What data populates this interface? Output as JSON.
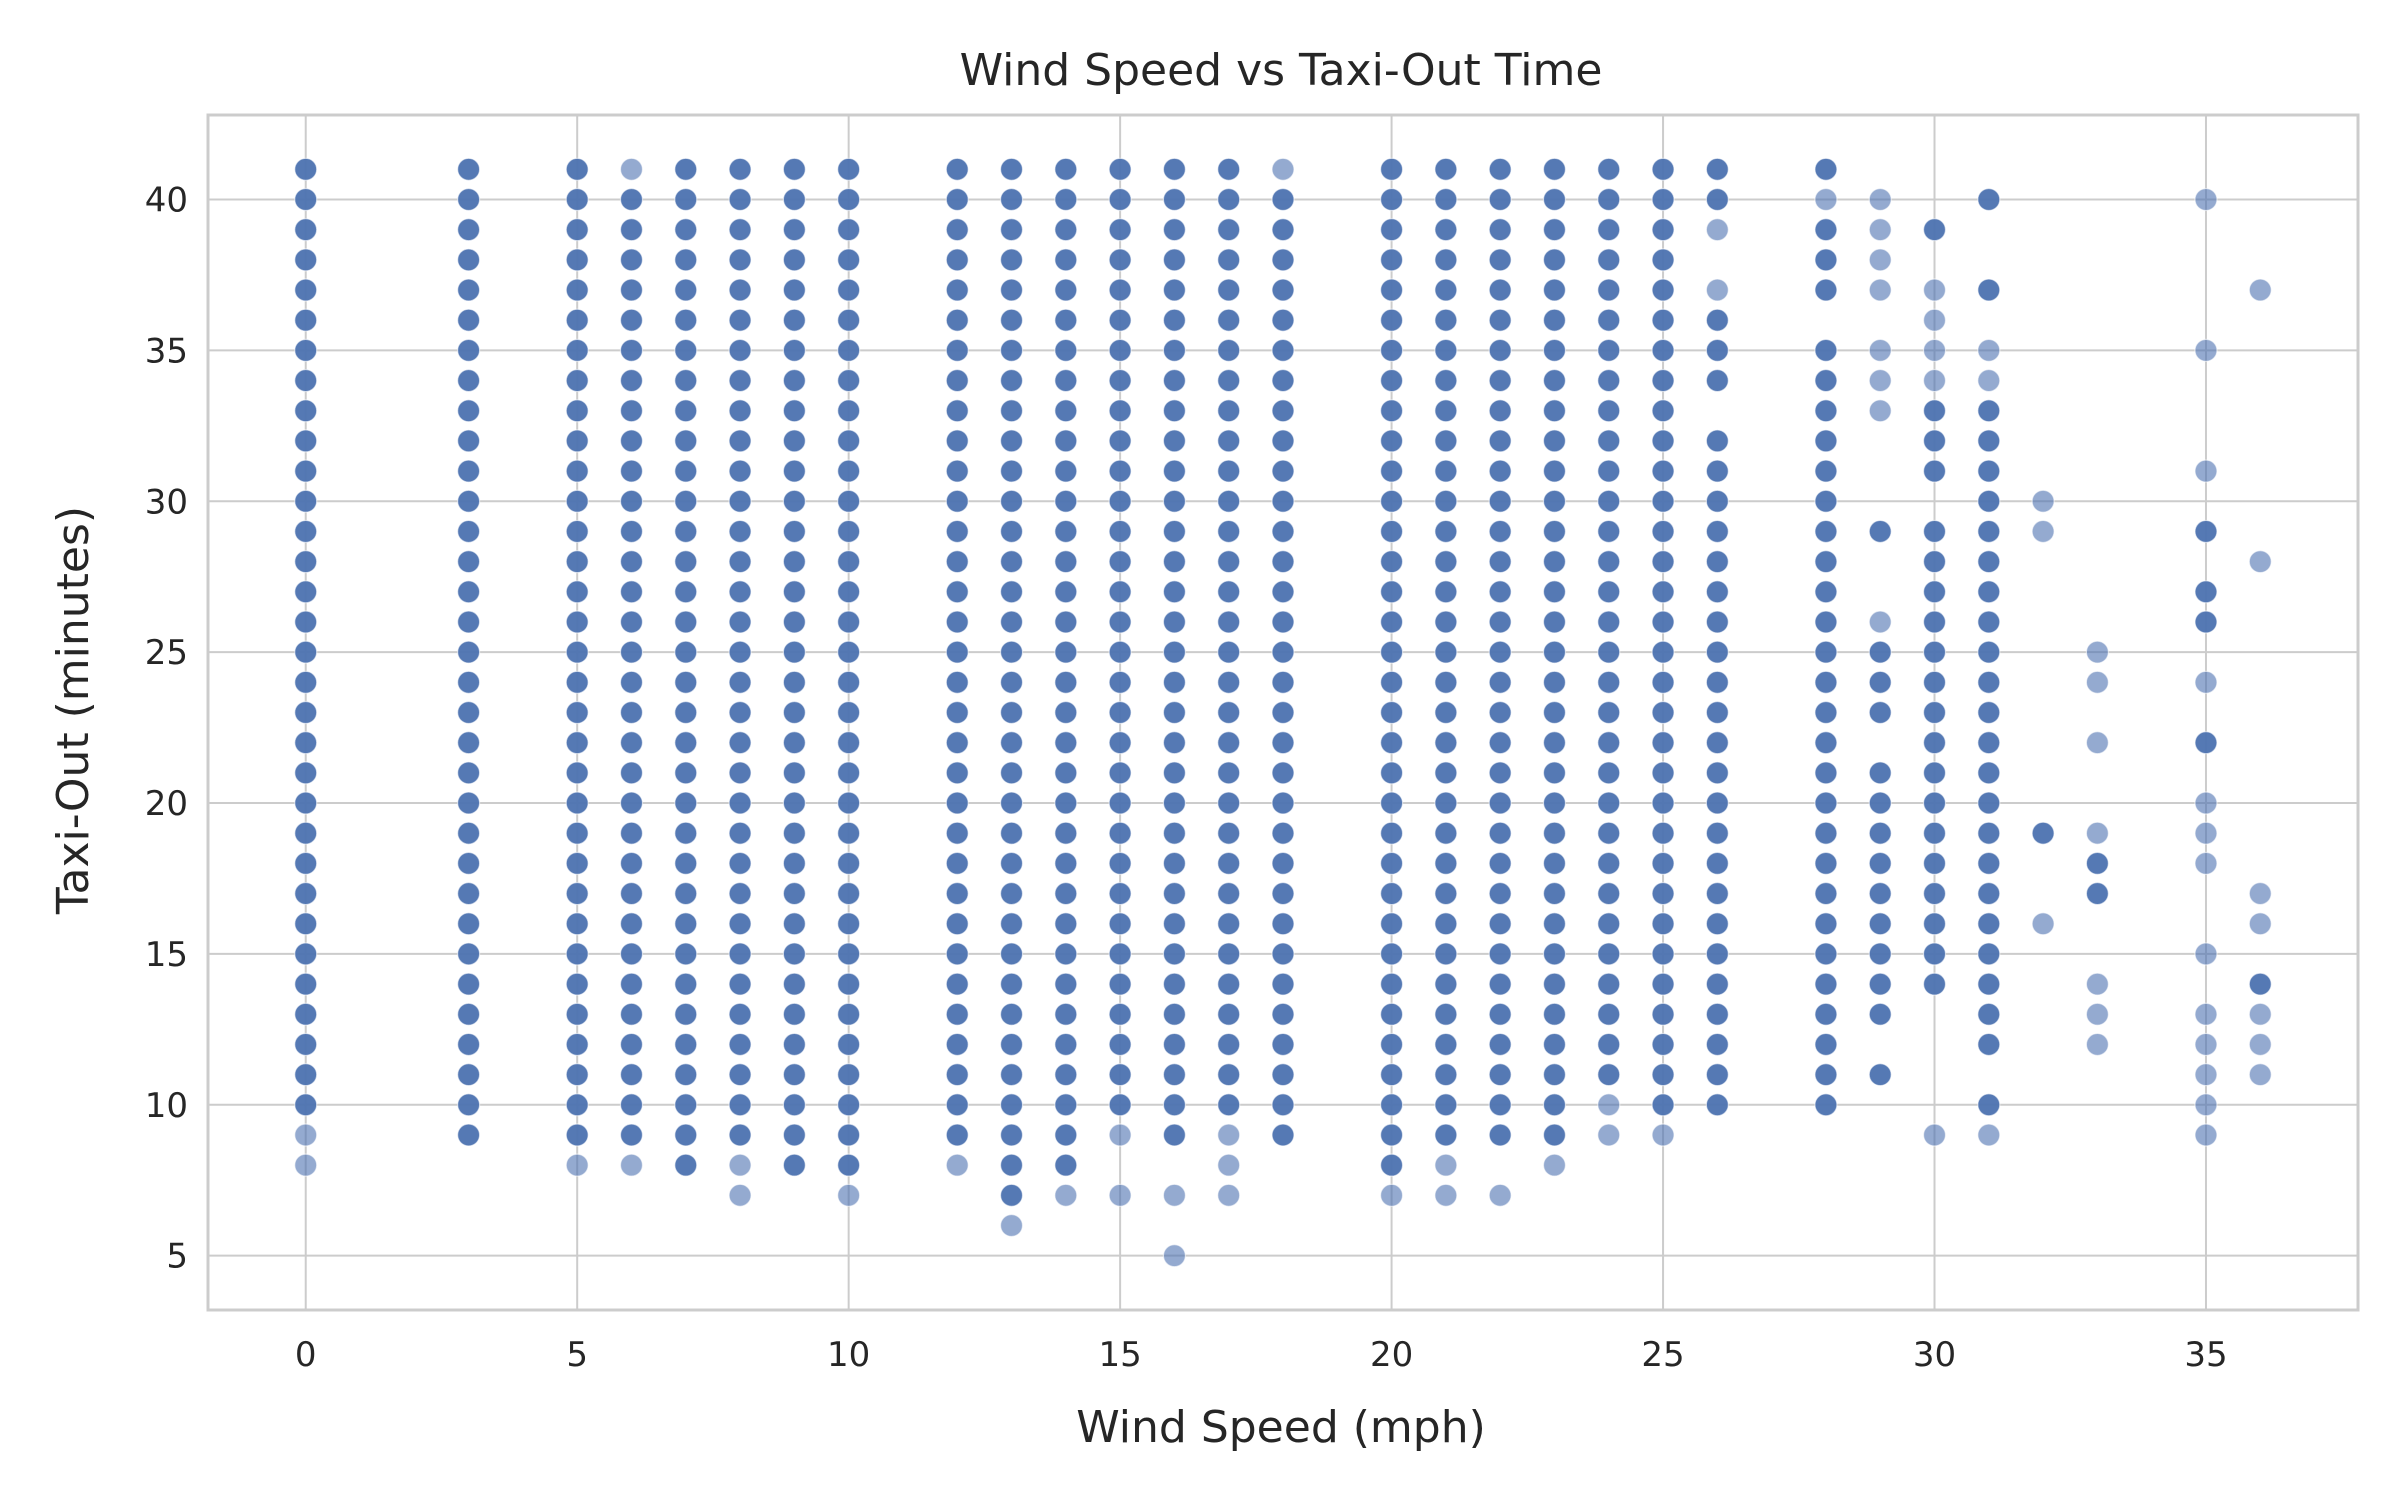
{
  "chart_data": {
    "type": "scatter",
    "title": "Wind Speed vs Taxi-Out Time",
    "xlabel": "Wind Speed (mph)",
    "ylabel": "Taxi-Out (minutes)",
    "xlim": [
      -1.8,
      37.8
    ],
    "ylim": [
      3.2,
      42.8
    ],
    "xticks": [
      0,
      5,
      10,
      15,
      20,
      25,
      30,
      35
    ],
    "yticks": [
      5,
      10,
      15,
      20,
      25,
      30,
      35,
      40
    ],
    "grid": true,
    "marker_color": "#4c72b0",
    "background": "#ffffff",
    "grid_color": "#cccccc",
    "columns": [
      {
        "x": 0,
        "dense": [
          10,
          41
        ],
        "faint": [
          8,
          9,
          39,
          40
        ],
        "missing": []
      },
      {
        "x": 3,
        "dense": [
          9,
          41
        ],
        "faint": [],
        "missing": []
      },
      {
        "x": 5,
        "dense": [
          9,
          41
        ],
        "faint": [
          8
        ],
        "missing": []
      },
      {
        "x": 6,
        "dense": [
          9,
          40
        ],
        "faint": [
          8,
          41
        ],
        "missing": []
      },
      {
        "x": 7,
        "dense": [
          8,
          41
        ],
        "faint": [],
        "missing": []
      },
      {
        "x": 8,
        "dense": [
          9,
          41
        ],
        "faint": [
          7,
          8
        ],
        "missing": []
      },
      {
        "x": 9,
        "dense": [
          8,
          41
        ],
        "faint": [],
        "missing": []
      },
      {
        "x": 10,
        "dense": [
          8,
          41
        ],
        "faint": [
          7
        ],
        "missing": []
      },
      {
        "x": 12,
        "dense": [
          9,
          41
        ],
        "faint": [
          8
        ],
        "missing": []
      },
      {
        "x": 13,
        "dense": [
          7,
          41
        ],
        "faint": [
          6
        ],
        "missing": []
      },
      {
        "x": 14,
        "dense": [
          8,
          41
        ],
        "faint": [
          7
        ],
        "missing": []
      },
      {
        "x": 15,
        "dense": [
          10,
          41
        ],
        "faint": [
          7,
          9
        ],
        "missing": []
      },
      {
        "x": 16,
        "dense": [
          9,
          41
        ],
        "faint": [
          5,
          7
        ],
        "missing": []
      },
      {
        "x": 17,
        "dense": [
          10,
          41
        ],
        "faint": [
          7,
          8,
          9
        ],
        "missing": []
      },
      {
        "x": 18,
        "dense": [
          9,
          40
        ],
        "faint": [
          41
        ],
        "missing": []
      },
      {
        "x": 20,
        "dense": [
          8,
          41
        ],
        "faint": [
          7
        ],
        "missing": []
      },
      {
        "x": 21,
        "dense": [
          9,
          41
        ],
        "faint": [
          7,
          8,
          37
        ],
        "missing": []
      },
      {
        "x": 22,
        "dense": [
          9,
          41
        ],
        "faint": [
          7
        ],
        "missing": []
      },
      {
        "x": 23,
        "dense": [
          9,
          41
        ],
        "faint": [
          8
        ],
        "missing": []
      },
      {
        "x": 24,
        "dense": [
          11,
          41
        ],
        "faint": [
          9,
          10
        ],
        "missing": []
      },
      {
        "x": 25,
        "dense": [
          10,
          41
        ],
        "faint": [
          9,
          37
        ],
        "missing": []
      },
      {
        "x": 26,
        "dense": [
          10,
          36
        ],
        "faint": [
          12,
          19,
          26,
          35,
          37,
          39
        ],
        "missing": [
          33,
          38
        ]
      },
      {
        "x": 28,
        "dense": [
          11,
          37
        ],
        "faint": [
          10,
          28,
          35,
          38,
          40
        ],
        "missing": [
          36
        ]
      },
      {
        "x": 29,
        "dense": [
          11,
          25
        ],
        "faint": [
          11,
          13,
          14,
          18,
          26,
          33,
          34,
          35,
          37,
          38,
          39,
          40
        ],
        "missing": [
          12,
          22,
          15,
          16,
          27,
          28,
          30,
          31,
          32,
          36
        ]
      },
      {
        "x": 30,
        "dense": [
          14,
          33
        ],
        "faint": [
          9,
          17,
          29,
          31,
          34,
          35,
          36,
          37
        ],
        "missing": [
          30
        ]
      },
      {
        "x": 31,
        "dense": [
          12,
          33
        ],
        "faint": [
          9,
          34,
          35
        ],
        "missing": [
          11,
          36
        ]
      },
      {
        "x": 32,
        "dense": [],
        "faint": [
          16,
          29,
          30
        ],
        "missing": []
      },
      {
        "x": 33,
        "dense": [],
        "faint": [
          12,
          13,
          14,
          17,
          18,
          19,
          22,
          24,
          25
        ],
        "missing": []
      },
      {
        "x": 35,
        "dense": [],
        "faint": [
          9,
          10,
          11,
          12,
          13,
          15,
          18,
          19,
          20,
          24,
          31,
          35,
          40
        ],
        "missing": []
      },
      {
        "x": 36,
        "dense": [],
        "faint": [
          11,
          12,
          13,
          16,
          17,
          28,
          37
        ],
        "missing": []
      }
    ],
    "points_solid": [
      [
        28,
        10
      ],
      [
        28,
        38
      ],
      [
        28,
        39
      ],
      [
        28,
        41
      ],
      [
        29,
        29
      ],
      [
        30,
        39
      ],
      [
        31,
        40
      ],
      [
        31,
        10
      ],
      [
        31,
        37
      ],
      [
        32,
        19
      ],
      [
        33,
        17
      ],
      [
        33,
        18
      ],
      [
        35,
        22
      ],
      [
        35,
        26
      ],
      [
        35,
        27
      ],
      [
        35,
        29
      ],
      [
        36,
        14
      ],
      [
        26,
        40
      ],
      [
        26,
        41
      ],
      [
        26,
        34
      ],
      [
        26,
        32
      ],
      [
        29,
        21
      ],
      [
        29,
        19
      ],
      [
        29,
        17
      ],
      [
        29,
        15
      ],
      [
        29,
        16
      ],
      [
        30,
        15
      ],
      [
        30,
        14
      ],
      [
        30,
        16
      ]
    ]
  }
}
